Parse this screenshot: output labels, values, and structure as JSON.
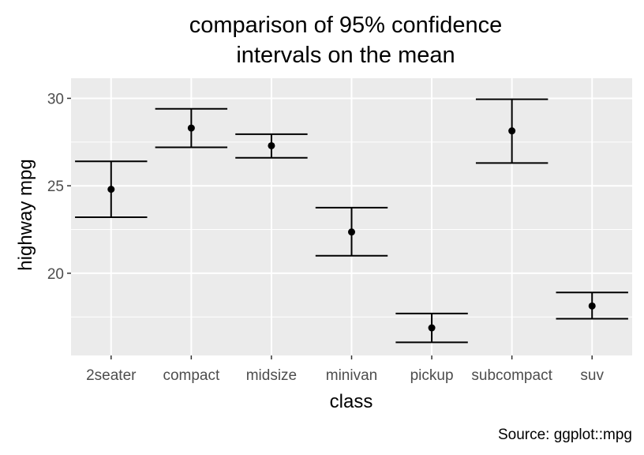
{
  "chart_data": {
    "type": "errorbar",
    "title": [
      "comparison of 95% confidence",
      "intervals on the mean"
    ],
    "xlabel": "class",
    "ylabel": "highway mpg",
    "caption": "Source: ggplot::mpg",
    "categories": [
      "2seater",
      "compact",
      "midsize",
      "minivan",
      "pickup",
      "subcompact",
      "suv"
    ],
    "mean": [
      24.8,
      28.3,
      27.29,
      22.36,
      16.88,
      28.14,
      18.13
    ],
    "lower": [
      23.2,
      27.2,
      26.6,
      21.0,
      16.05,
      26.3,
      17.4
    ],
    "upper": [
      26.4,
      29.4,
      27.95,
      23.75,
      17.7,
      29.95,
      18.9
    ],
    "ylim": [
      15.3,
      31.15
    ],
    "yticks": [
      20,
      25,
      30
    ],
    "yminor": [
      17.5,
      22.5,
      27.5
    ],
    "grid": true,
    "colors": {
      "panel": "#ebebeb",
      "grid": "#ffffff",
      "marks": "#000000",
      "tick_text": "#4d4d4d"
    }
  }
}
